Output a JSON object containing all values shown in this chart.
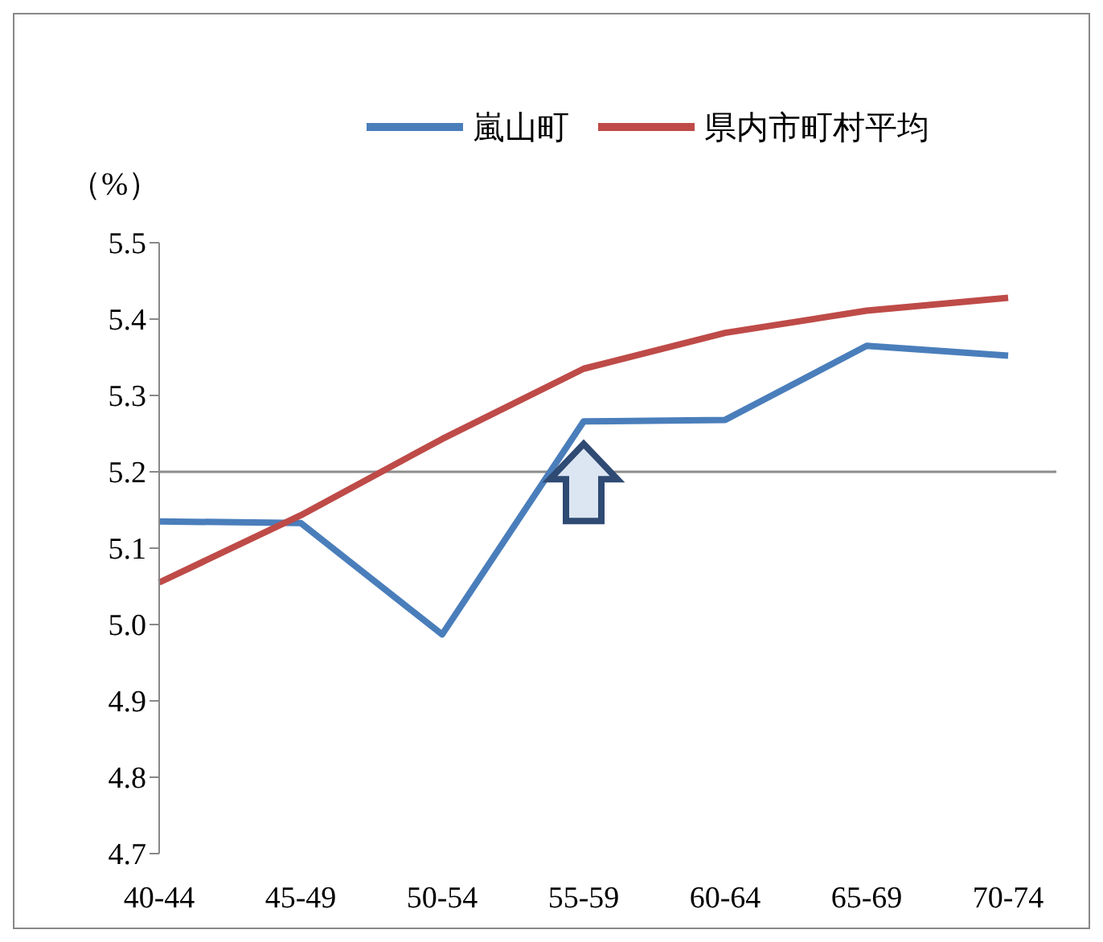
{
  "chart_data": {
    "type": "line",
    "ylabel": "（%）",
    "categories": [
      "40-44",
      "45-49",
      "50-54",
      "55-59",
      "60-64",
      "65-69",
      "70-74"
    ],
    "series": [
      {
        "name": "嵐山町",
        "color": "#4a7ebb",
        "values": [
          5.135,
          5.133,
          4.987,
          5.266,
          5.268,
          5.365,
          5.352
        ]
      },
      {
        "name": "県内市町村平均",
        "color": "#be4b48",
        "values": [
          5.055,
          5.143,
          5.243,
          5.335,
          5.382,
          5.411,
          5.428
        ]
      }
    ],
    "ylim": [
      4.7,
      5.5
    ],
    "yticks": [
      4.7,
      4.8,
      4.9,
      {
        "value": 5,
        "label": "5.0"
      },
      5.1,
      5.2,
      5.3,
      5.4,
      5.5
    ],
    "ref_lines": [
      {
        "axis": "y",
        "value": 5.2,
        "color": "#8c8c8c"
      }
    ],
    "grid": false,
    "legend": "top",
    "marker": "none",
    "line_style": "solid"
  }
}
